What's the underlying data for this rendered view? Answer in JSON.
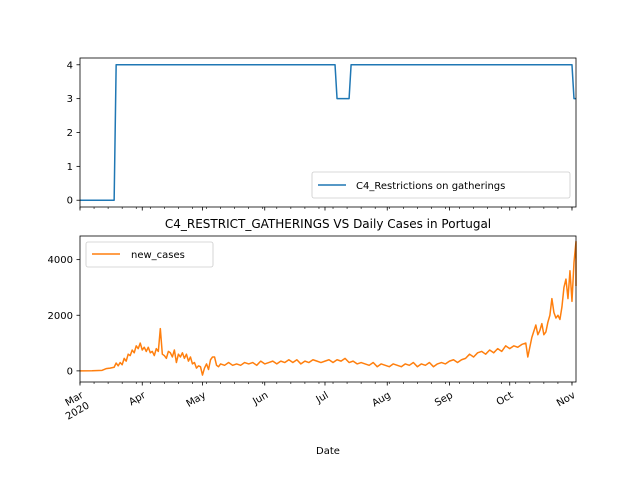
{
  "chart_data": [
    {
      "type": "line",
      "title": "",
      "xlabel": "",
      "ylabel": "",
      "ylim": [
        -0.2,
        4.2
      ],
      "yticks": [
        0,
        1,
        2,
        3,
        4
      ],
      "legend": {
        "position": "lower-right"
      },
      "grid": false,
      "series": [
        {
          "name": "C4_Restrictions on gatherings",
          "color": "#1f77b4",
          "points": [
            [
              "2020-03-01",
              0
            ],
            [
              "2020-03-18",
              0
            ],
            [
              "2020-03-19",
              4
            ],
            [
              "2020-07-06",
              4
            ],
            [
              "2020-07-07",
              3
            ],
            [
              "2020-07-13",
              3
            ],
            [
              "2020-07-14",
              4
            ],
            [
              "2020-11-01",
              4
            ],
            [
              "2020-11-02",
              3
            ],
            [
              "2020-11-03",
              3
            ]
          ]
        }
      ]
    },
    {
      "type": "line",
      "title": "C4_RESTRICT_GATHERINGS VS Daily Cases in Portugal",
      "xlabel": "Date",
      "ylabel": "",
      "ylim": [
        -400,
        4850
      ],
      "yticks": [
        0,
        2000,
        4000
      ],
      "x_range": [
        "2020-03-01",
        "2020-11-03"
      ],
      "x_ticks": [
        {
          "date": "2020-03-01",
          "label": "Mar",
          "sublabel": "2020"
        },
        {
          "date": "2020-04-01",
          "label": "Apr"
        },
        {
          "date": "2020-05-01",
          "label": "May"
        },
        {
          "date": "2020-06-01",
          "label": "Jun"
        },
        {
          "date": "2020-07-01",
          "label": "Jul"
        },
        {
          "date": "2020-08-01",
          "label": "Aug"
        },
        {
          "date": "2020-09-01",
          "label": "Sep"
        },
        {
          "date": "2020-10-01",
          "label": "Oct"
        },
        {
          "date": "2020-11-01",
          "label": "Nov"
        }
      ],
      "legend": {
        "position": "upper-left"
      },
      "grid": false,
      "series": [
        {
          "name": "new_cases",
          "color": "#ff7f0e",
          "points": [
            [
              "2020-03-01",
              0
            ],
            [
              "2020-03-07",
              5
            ],
            [
              "2020-03-12",
              20
            ],
            [
              "2020-03-14",
              80
            ],
            [
              "2020-03-16",
              100
            ],
            [
              "2020-03-18",
              130
            ],
            [
              "2020-03-19",
              280
            ],
            [
              "2020-03-20",
              180
            ],
            [
              "2020-03-21",
              300
            ],
            [
              "2020-03-22",
              220
            ],
            [
              "2020-03-23",
              450
            ],
            [
              "2020-03-24",
              350
            ],
            [
              "2020-03-25",
              600
            ],
            [
              "2020-03-26",
              550
            ],
            [
              "2020-03-27",
              750
            ],
            [
              "2020-03-28",
              650
            ],
            [
              "2020-03-29",
              900
            ],
            [
              "2020-03-30",
              800
            ],
            [
              "2020-03-31",
              1000
            ],
            [
              "2020-04-01",
              750
            ],
            [
              "2020-04-02",
              850
            ],
            [
              "2020-04-03",
              700
            ],
            [
              "2020-04-04",
              850
            ],
            [
              "2020-04-05",
              650
            ],
            [
              "2020-04-06",
              700
            ],
            [
              "2020-04-07",
              550
            ],
            [
              "2020-04-08",
              800
            ],
            [
              "2020-04-09",
              700
            ],
            [
              "2020-04-10",
              1520
            ],
            [
              "2020-04-11",
              600
            ],
            [
              "2020-04-12",
              550
            ],
            [
              "2020-04-13",
              450
            ],
            [
              "2020-04-14",
              700
            ],
            [
              "2020-04-15",
              650
            ],
            [
              "2020-04-16",
              500
            ],
            [
              "2020-04-17",
              750
            ],
            [
              "2020-04-18",
              300
            ],
            [
              "2020-04-19",
              600
            ],
            [
              "2020-04-20",
              500
            ],
            [
              "2020-04-21",
              650
            ],
            [
              "2020-04-22",
              450
            ],
            [
              "2020-04-23",
              600
            ],
            [
              "2020-04-24",
              350
            ],
            [
              "2020-04-25",
              500
            ],
            [
              "2020-04-26",
              250
            ],
            [
              "2020-04-27",
              300
            ],
            [
              "2020-04-28",
              100
            ],
            [
              "2020-04-29",
              180
            ],
            [
              "2020-04-30",
              150
            ],
            [
              "2020-05-01",
              -150
            ],
            [
              "2020-05-02",
              100
            ],
            [
              "2020-05-03",
              250
            ],
            [
              "2020-05-04",
              50
            ],
            [
              "2020-05-05",
              400
            ],
            [
              "2020-05-06",
              500
            ],
            [
              "2020-05-07",
              500
            ],
            [
              "2020-05-08",
              200
            ],
            [
              "2020-05-09",
              150
            ],
            [
              "2020-05-10",
              250
            ],
            [
              "2020-05-12",
              200
            ],
            [
              "2020-05-14",
              300
            ],
            [
              "2020-05-16",
              200
            ],
            [
              "2020-05-18",
              250
            ],
            [
              "2020-05-20",
              200
            ],
            [
              "2020-05-22",
              300
            ],
            [
              "2020-05-24",
              250
            ],
            [
              "2020-05-26",
              300
            ],
            [
              "2020-05-28",
              200
            ],
            [
              "2020-05-30",
              350
            ],
            [
              "2020-06-01",
              250
            ],
            [
              "2020-06-03",
              300
            ],
            [
              "2020-06-05",
              350
            ],
            [
              "2020-06-07",
              250
            ],
            [
              "2020-06-09",
              350
            ],
            [
              "2020-06-11",
              300
            ],
            [
              "2020-06-13",
              400
            ],
            [
              "2020-06-15",
              300
            ],
            [
              "2020-06-17",
              400
            ],
            [
              "2020-06-19",
              250
            ],
            [
              "2020-06-21",
              350
            ],
            [
              "2020-06-23",
              300
            ],
            [
              "2020-06-25",
              400
            ],
            [
              "2020-06-27",
              350
            ],
            [
              "2020-06-29",
              300
            ],
            [
              "2020-07-01",
              350
            ],
            [
              "2020-07-03",
              400
            ],
            [
              "2020-07-05",
              300
            ],
            [
              "2020-07-07",
              400
            ],
            [
              "2020-07-09",
              350
            ],
            [
              "2020-07-11",
              450
            ],
            [
              "2020-07-13",
              300
            ],
            [
              "2020-07-15",
              350
            ],
            [
              "2020-07-17",
              250
            ],
            [
              "2020-07-19",
              300
            ],
            [
              "2020-07-21",
              250
            ],
            [
              "2020-07-23",
              200
            ],
            [
              "2020-07-25",
              300
            ],
            [
              "2020-07-27",
              150
            ],
            [
              "2020-07-29",
              250
            ],
            [
              "2020-07-31",
              200
            ],
            [
              "2020-08-02",
              150
            ],
            [
              "2020-08-04",
              250
            ],
            [
              "2020-08-06",
              200
            ],
            [
              "2020-08-08",
              150
            ],
            [
              "2020-08-10",
              250
            ],
            [
              "2020-08-12",
              200
            ],
            [
              "2020-08-14",
              300
            ],
            [
              "2020-08-16",
              150
            ],
            [
              "2020-08-18",
              250
            ],
            [
              "2020-08-20",
              200
            ],
            [
              "2020-08-22",
              300
            ],
            [
              "2020-08-24",
              150
            ],
            [
              "2020-08-26",
              250
            ],
            [
              "2020-08-28",
              300
            ],
            [
              "2020-08-30",
              250
            ],
            [
              "2020-09-01",
              350
            ],
            [
              "2020-09-03",
              400
            ],
            [
              "2020-09-05",
              300
            ],
            [
              "2020-09-07",
              400
            ],
            [
              "2020-09-09",
              450
            ],
            [
              "2020-09-11",
              600
            ],
            [
              "2020-09-13",
              500
            ],
            [
              "2020-09-15",
              650
            ],
            [
              "2020-09-17",
              700
            ],
            [
              "2020-09-19",
              600
            ],
            [
              "2020-09-21",
              750
            ],
            [
              "2020-09-23",
              650
            ],
            [
              "2020-09-25",
              800
            ],
            [
              "2020-09-27",
              700
            ],
            [
              "2020-09-29",
              900
            ],
            [
              "2020-10-01",
              800
            ],
            [
              "2020-10-03",
              900
            ],
            [
              "2020-10-05",
              850
            ],
            [
              "2020-10-07",
              950
            ],
            [
              "2020-10-09",
              1000
            ],
            [
              "2020-10-10",
              500
            ],
            [
              "2020-10-12",
              1200
            ],
            [
              "2020-10-14",
              1650
            ],
            [
              "2020-10-15",
              1300
            ],
            [
              "2020-10-16",
              1450
            ],
            [
              "2020-10-17",
              1700
            ],
            [
              "2020-10-18",
              1300
            ],
            [
              "2020-10-19",
              1400
            ],
            [
              "2020-10-20",
              1750
            ],
            [
              "2020-10-21",
              2000
            ],
            [
              "2020-10-22",
              2600
            ],
            [
              "2020-10-23",
              2100
            ],
            [
              "2020-10-24",
              1900
            ],
            [
              "2020-10-25",
              2000
            ],
            [
              "2020-10-26",
              1850
            ],
            [
              "2020-10-27",
              2300
            ],
            [
              "2020-10-28",
              3000
            ],
            [
              "2020-10-29",
              3300
            ],
            [
              "2020-10-30",
              2600
            ],
            [
              "2020-10-31",
              3600
            ],
            [
              "2020-11-01",
              2500
            ],
            [
              "2020-11-02",
              3900
            ],
            [
              "2020-11-03",
              4650
            ],
            [
              "2020-11-04",
              3050
            ]
          ]
        }
      ]
    }
  ]
}
